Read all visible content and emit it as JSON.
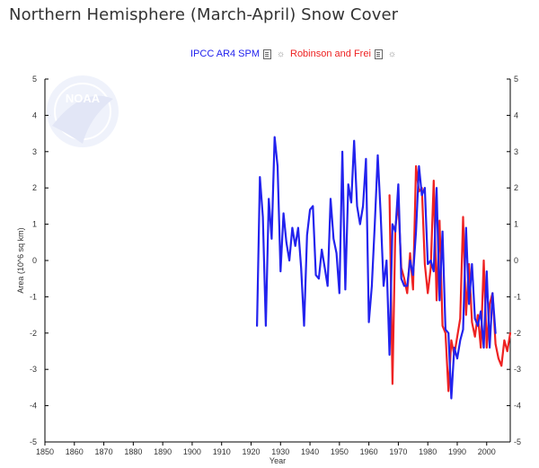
{
  "title": "Northern Hemisphere (March-April) Snow Cover",
  "legend": [
    {
      "name": "IPCC AR4 SPM",
      "color": "#2222ee",
      "icons": [
        "document-icon",
        "gear-icon"
      ]
    },
    {
      "name": "Robinson and Frei",
      "color": "#ee2222",
      "icons": [
        "document-icon",
        "gear-icon"
      ]
    }
  ],
  "watermark": "NOAA",
  "chart_data": {
    "type": "line",
    "title": "Northern Hemisphere (March-April) Snow Cover",
    "xlabel": "Year",
    "ylabel": "Area (10^6 sq km)",
    "xlim": [
      1850,
      2008
    ],
    "ylim": [
      -5,
      5
    ],
    "xticks": [
      1850,
      1860,
      1870,
      1880,
      1890,
      1900,
      1910,
      1920,
      1930,
      1940,
      1950,
      1960,
      1970,
      1980,
      1990,
      2000
    ],
    "yticks": [
      -5,
      -4,
      -3,
      -2,
      -1,
      0,
      1,
      2,
      3,
      4,
      5
    ],
    "grid": false,
    "legend_position": "top-center",
    "series": [
      {
        "name": "Robinson and Frei",
        "color": "#ee2222",
        "x": [
          1967,
          1968,
          1969,
          1970,
          1971,
          1972,
          1973,
          1974,
          1975,
          1976,
          1977,
          1978,
          1979,
          1980,
          1981,
          1982,
          1983,
          1984,
          1985,
          1986,
          1987,
          1988,
          1989,
          1990,
          1991,
          1992,
          1993,
          1994,
          1995,
          1996,
          1997,
          1998,
          1999,
          2000,
          2001,
          2002,
          2003,
          2004,
          2005,
          2006,
          2007,
          2008
        ],
        "y": [
          1.8,
          -3.4,
          0.9,
          1.6,
          -0.2,
          -0.5,
          -0.9,
          0.2,
          -0.8,
          2.6,
          1.9,
          2.0,
          -0.1,
          -0.9,
          -0.2,
          2.2,
          -1.1,
          1.1,
          -1.8,
          -2.0,
          -3.6,
          -2.2,
          -2.6,
          -2.1,
          -1.6,
          1.2,
          -1.5,
          -0.1,
          -1.7,
          -2.1,
          -1.5,
          -2.4,
          0.0,
          -2.4,
          -1.2,
          -0.9,
          -2.3,
          -2.7,
          -2.9,
          -2.2,
          -2.5,
          -2.0
        ]
      },
      {
        "name": "IPCC AR4 SPM",
        "color": "#2222ee",
        "x": [
          1922,
          1923,
          1924,
          1925,
          1926,
          1927,
          1928,
          1929,
          1930,
          1931,
          1932,
          1933,
          1934,
          1935,
          1936,
          1937,
          1938,
          1939,
          1940,
          1941,
          1942,
          1943,
          1944,
          1945,
          1946,
          1947,
          1948,
          1949,
          1950,
          1951,
          1952,
          1953,
          1954,
          1955,
          1956,
          1957,
          1958,
          1959,
          1960,
          1961,
          1962,
          1963,
          1964,
          1965,
          1966,
          1967,
          1968,
          1969,
          1970,
          1971,
          1972,
          1973,
          1974,
          1975,
          1976,
          1977,
          1978,
          1979,
          1980,
          1981,
          1982,
          1983,
          1984,
          1985,
          1986,
          1987,
          1988,
          1989,
          1990,
          1991,
          1992,
          1993,
          1994,
          1995,
          1996,
          1997,
          1998,
          1999,
          2000,
          2001,
          2002,
          2003
        ],
        "y": [
          -1.8,
          2.3,
          1.2,
          -1.8,
          1.7,
          0.6,
          3.4,
          2.6,
          -0.3,
          1.3,
          0.5,
          0.0,
          0.9,
          0.4,
          0.9,
          -0.2,
          -1.8,
          0.7,
          1.4,
          1.5,
          -0.4,
          -0.5,
          0.3,
          -0.2,
          -0.7,
          1.7,
          0.6,
          0.2,
          -0.9,
          3.0,
          -0.8,
          2.1,
          1.6,
          3.3,
          1.5,
          1.0,
          1.5,
          2.8,
          -1.7,
          -0.7,
          1.0,
          2.9,
          1.3,
          -0.7,
          0.0,
          -2.6,
          1.0,
          0.8,
          2.1,
          -0.5,
          -0.7,
          -0.7,
          0.0,
          -0.4,
          0.8,
          2.6,
          1.8,
          2.0,
          -0.1,
          0.0,
          -0.3,
          2.0,
          -1.1,
          0.8,
          -1.9,
          -2.0,
          -3.8,
          -2.4,
          -2.7,
          -2.2,
          -1.9,
          0.9,
          -1.2,
          -0.1,
          -1.6,
          -1.8,
          -1.4,
          -2.4,
          -0.3,
          -2.4,
          -0.9,
          -2.0
        ]
      }
    ]
  }
}
